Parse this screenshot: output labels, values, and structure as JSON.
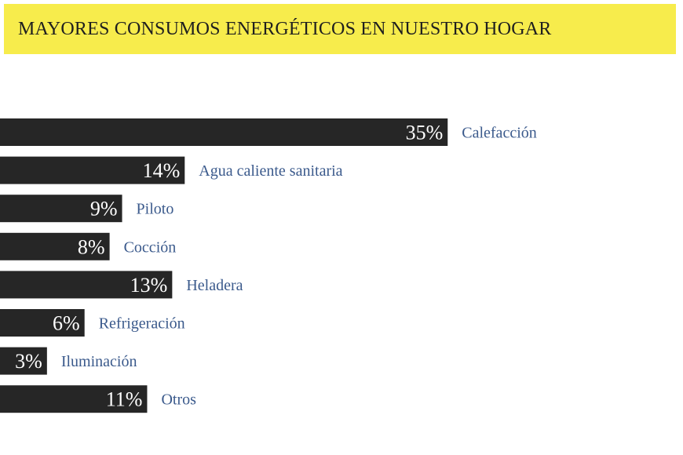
{
  "title": "MAYORES CONSUMOS ENERGÉTICOS EN NUESTRO HOGAR",
  "colors": {
    "banner": "#f7ec4c",
    "bar": "#262626",
    "label": "#3b5a8c",
    "value": "#ffffff"
  },
  "chart_data": {
    "type": "bar",
    "orientation": "horizontal",
    "title": "MAYORES CONSUMOS ENERGÉTICOS EN NUESTRO HOGAR",
    "categories": [
      "Calefacción",
      "Agua caliente sanitaria",
      "Piloto",
      "Cocción",
      "Heladera",
      "Refrigeración",
      "Iluminación",
      "Otros"
    ],
    "values": [
      35,
      14,
      9,
      8,
      13,
      6,
      3,
      11
    ],
    "value_labels": [
      "35%",
      "14%",
      "9%",
      "8%",
      "13%",
      "6%",
      "3%",
      "11%"
    ],
    "unit": "%",
    "grid": false,
    "legend": "none"
  }
}
